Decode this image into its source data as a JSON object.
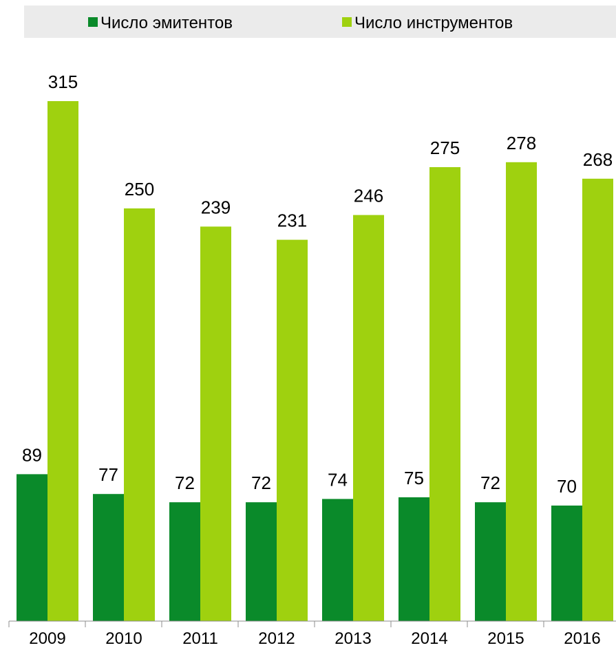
{
  "chart_data": {
    "type": "bar",
    "categories": [
      "2009",
      "2010",
      "2011",
      "2012",
      "2013",
      "2014",
      "2015",
      "2016"
    ],
    "series": [
      {
        "name": "Число эмитентов",
        "color": "#0a8a2a",
        "values": [
          89,
          77,
          72,
          72,
          74,
          75,
          72,
          70
        ]
      },
      {
        "name": "Число инструментов",
        "color": "#9fd10f",
        "values": [
          315,
          250,
          239,
          231,
          246,
          275,
          278,
          268
        ]
      }
    ],
    "legend_position": "top",
    "legend_background": "#ebebeb",
    "grid": false
  }
}
